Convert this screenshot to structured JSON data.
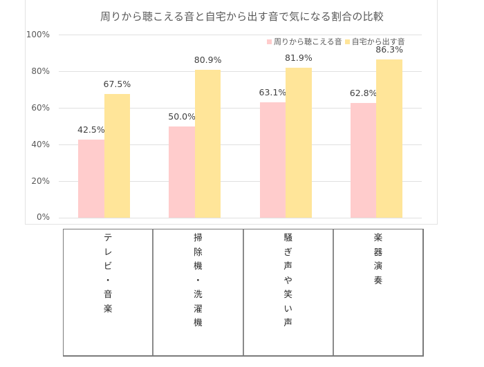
{
  "chart_data": {
    "type": "bar",
    "title": "周りから聴こえる音と自宅から出す音で気になる割合の比較",
    "xlabel": "",
    "ylabel": "",
    "ylim": [
      0,
      100
    ],
    "y_ticks": [
      "100%",
      "80%",
      "60%",
      "40%",
      "20%",
      "0%"
    ],
    "grid": true,
    "legend_position": "top-right",
    "categories": [
      "テレビ・音楽",
      "掃除機・洗濯機",
      "騒ぎ声や笑い声",
      "楽器演奏"
    ],
    "series": [
      {
        "name": "周りから聴こえる音",
        "color": "#FFCCCC",
        "values": [
          42.5,
          50.0,
          63.1,
          62.8
        ],
        "labels": [
          "42.5%",
          "50.0%",
          "63.1%",
          "62.8%"
        ]
      },
      {
        "name": "自宅から出す音",
        "color": "#FFE599",
        "values": [
          67.5,
          80.9,
          81.9,
          86.3
        ],
        "labels": [
          "67.5%",
          "80.9%",
          "81.9%",
          "86.3%"
        ]
      }
    ]
  },
  "category_table": {
    "cells": [
      "テ\nレ\nビ\n・\n音\n楽",
      "掃\n除\n機\n・\n洗\n濯\n機",
      "騒\nぎ\n声\nや\n笑\nい\n声",
      "楽\n器\n演\n奏"
    ]
  }
}
